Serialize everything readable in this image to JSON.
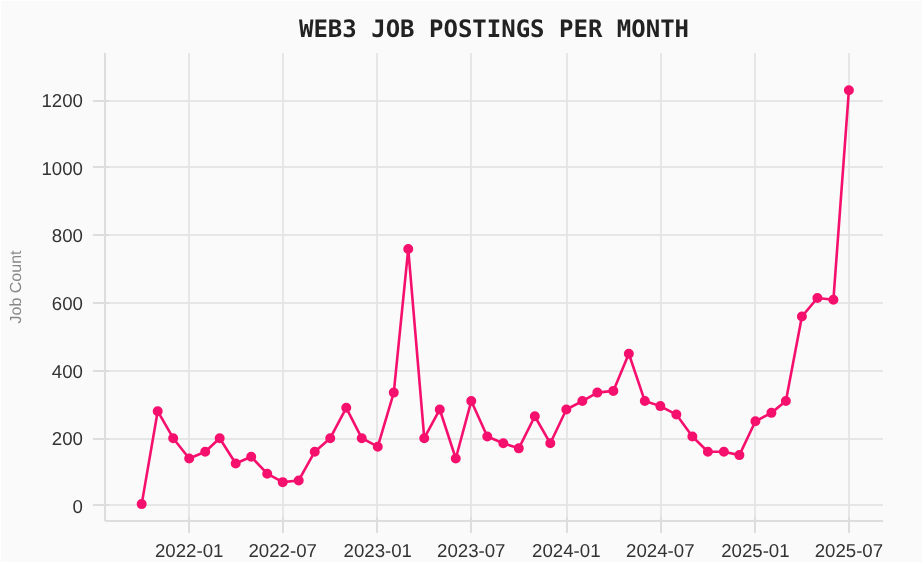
{
  "chart_data": {
    "type": "line",
    "title": "WEB3 JOB POSTINGS PER MONTH",
    "ylabel": "Job Count",
    "x": [
      "2021-10",
      "2021-11",
      "2021-12",
      "2022-01",
      "2022-02",
      "2022-03",
      "2022-04",
      "2022-05",
      "2022-06",
      "2022-07",
      "2022-08",
      "2022-09",
      "2022-10",
      "2022-11",
      "2022-12",
      "2023-01",
      "2023-02",
      "2023-03",
      "2023-04",
      "2023-05",
      "2023-06",
      "2023-07",
      "2023-08",
      "2023-09",
      "2023-10",
      "2023-11",
      "2023-12",
      "2024-01",
      "2024-02",
      "2024-03",
      "2024-04",
      "2024-05",
      "2024-06",
      "2024-07",
      "2024-08",
      "2024-09",
      "2024-10",
      "2024-11",
      "2024-12",
      "2025-01",
      "2025-02",
      "2025-03",
      "2025-04",
      "2025-05",
      "2025-06",
      "2025-07"
    ],
    "series": [
      {
        "color": "#f5106e",
        "values": [
          5,
          280,
          200,
          140,
          160,
          200,
          125,
          145,
          95,
          70,
          75,
          160,
          200,
          290,
          200,
          175,
          335,
          760,
          200,
          285,
          140,
          310,
          205,
          185,
          170,
          265,
          185,
          285,
          310,
          335,
          340,
          450,
          310,
          295,
          270,
          205,
          160,
          160,
          150,
          250,
          275,
          310,
          560,
          615,
          610,
          1230
        ]
      }
    ],
    "xlim": [
      "2021-07-22",
      "2025-09-05"
    ],
    "xticks": [
      "2022-01",
      "2022-07",
      "2023-01",
      "2023-07",
      "2024-01",
      "2024-07",
      "2025-01",
      "2025-07"
    ],
    "ylim": [
      -45,
      1340
    ],
    "yticks": [
      0,
      200,
      400,
      600,
      800,
      1000,
      1200
    ],
    "grid": true,
    "marker": "circle",
    "line_style": "solid"
  }
}
